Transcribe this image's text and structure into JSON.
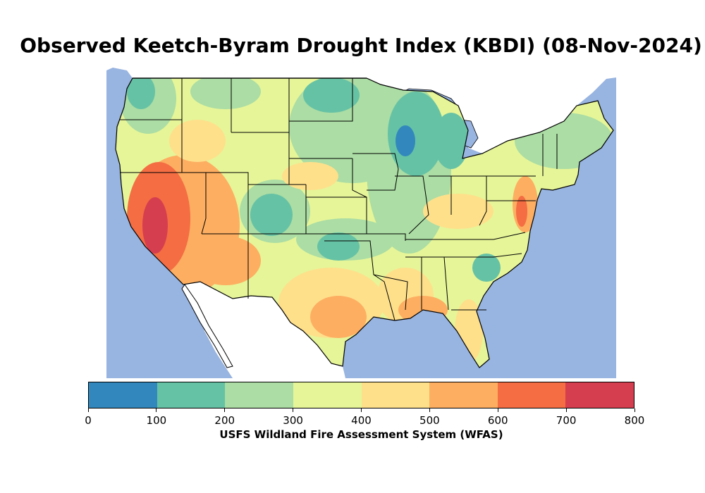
{
  "title": "Observed Keetch-Byram Drought Index (KBDI) (08-Nov-2024)",
  "colorbar": {
    "label": "USFS Wildland Fire Assessment System (WFAS)",
    "ticks": [
      "0",
      "100",
      "200",
      "300",
      "400",
      "500",
      "600",
      "700",
      "800"
    ],
    "colors": [
      "#3288bd",
      "#66c2a5",
      "#abdda4",
      "#e6f598",
      "#fee08b",
      "#fdae61",
      "#f46d43",
      "#d53e4f"
    ]
  },
  "map_colors": {
    "water": "#98b4e0",
    "land_outside": "#ffffff",
    "borders": "#000000"
  }
}
